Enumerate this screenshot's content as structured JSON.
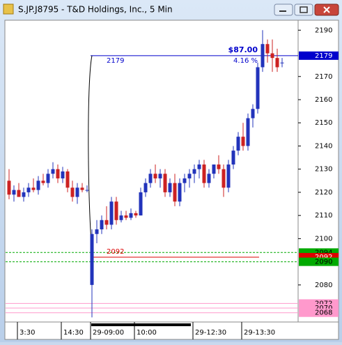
{
  "chart_data": {
    "type": "candlestick",
    "title": "S.JP.J8795 - T&D Holdings, Inc., 5 Min",
    "categories": [
      null,
      null,
      "3:30",
      null,
      null,
      null,
      null,
      null,
      null,
      null,
      null,
      "14:30",
      null,
      null,
      null,
      null,
      null,
      "29-09:00",
      null,
      null,
      null,
      null,
      null,
      null,
      null,
      null,
      "10:00",
      null,
      null,
      null,
      null,
      null,
      null,
      null,
      null,
      null,
      null,
      null,
      "29-12:30",
      null,
      null,
      null,
      null,
      null,
      null,
      null,
      null,
      null,
      "29-13:30",
      null,
      null,
      null,
      null,
      null,
      null,
      null,
      null
    ],
    "open": [
      2125,
      2119,
      2121,
      2118,
      2120,
      2122,
      2121,
      2125,
      2124,
      2128,
      2130,
      2126,
      2129,
      2122,
      2118,
      2122,
      2121,
      2080,
      2102,
      2104,
      2108,
      2106,
      2116,
      2108,
      2110,
      2109,
      2111,
      2110,
      2120,
      2124,
      2128,
      2126,
      2128,
      2120,
      2124,
      2116,
      2124,
      2126,
      2128,
      2130,
      2132,
      2124,
      2128,
      2132,
      2130,
      2122,
      2132,
      2138,
      2144,
      2140,
      2152,
      2156,
      2174,
      2184,
      2180,
      2178,
      2176
    ],
    "high": [
      2130,
      2123,
      2124,
      2122,
      2124,
      2126,
      2127,
      2128,
      2130,
      2133,
      2132,
      2131,
      2130,
      2125,
      2124,
      2124,
      2123,
      2104,
      2108,
      2110,
      2114,
      2118,
      2118,
      2112,
      2112,
      2113,
      2112,
      2122,
      2126,
      2130,
      2132,
      2130,
      2130,
      2126,
      2128,
      2126,
      2128,
      2130,
      2132,
      2134,
      2134,
      2130,
      2132,
      2136,
      2132,
      2134,
      2140,
      2146,
      2150,
      2154,
      2158,
      2176,
      2190,
      2186,
      2186,
      2182,
      2178
    ],
    "low": [
      2117,
      2116,
      2118,
      2116,
      2118,
      2120,
      2119,
      2123,
      2122,
      2126,
      2124,
      2124,
      2120,
      2116,
      2115,
      2120,
      2120,
      2066,
      2098,
      2102,
      2104,
      2104,
      2106,
      2107,
      2108,
      2108,
      2109,
      2110,
      2118,
      2122,
      2124,
      2122,
      2118,
      2118,
      2114,
      2114,
      2120,
      2122,
      2124,
      2126,
      2122,
      2122,
      2126,
      2128,
      2118,
      2120,
      2130,
      2136,
      2138,
      2138,
      2148,
      2154,
      2172,
      2176,
      2172,
      2172,
      2174
    ],
    "close": [
      2119,
      2121,
      2118,
      2120,
      2122,
      2121,
      2125,
      2124,
      2128,
      2130,
      2126,
      2129,
      2122,
      2118,
      2122,
      2121,
      2121,
      2102,
      2104,
      2108,
      2106,
      2116,
      2108,
      2110,
      2109,
      2111,
      2110,
      2120,
      2124,
      2128,
      2126,
      2128,
      2120,
      2124,
      2116,
      2124,
      2126,
      2128,
      2130,
      2132,
      2124,
      2128,
      2132,
      2130,
      2122,
      2132,
      2138,
      2144,
      2140,
      2152,
      2156,
      2174,
      2184,
      2180,
      2178,
      2174,
      2176
    ],
    "up_color": "#2233bb",
    "down_color": "#cc2222",
    "ylim": [
      2064,
      2194
    ],
    "yticks": [
      2190,
      2170,
      2160,
      2150,
      2140,
      2130,
      2120,
      2110,
      2100,
      2080
    ],
    "levels": [
      {
        "value": 2179,
        "color": "#0000cc",
        "box_text": "#ffffff"
      },
      {
        "value": 2094,
        "color": "#00aa00",
        "box_text": "#000000"
      },
      {
        "value": 2092,
        "color": "#dd0000",
        "box_text": "#ffffff"
      },
      {
        "value": 2090,
        "color": "#00aa00",
        "box_text": "#000000"
      },
      {
        "value": 2072,
        "color": "#ff99cc",
        "box_text": "#000000"
      },
      {
        "value": 2070,
        "color": "#ff99cc",
        "box_text": "#000000"
      },
      {
        "value": 2068,
        "color": "#ff99cc",
        "box_text": "#000000"
      }
    ],
    "change_amount": "$87.00",
    "change_percent": "4.16 %"
  }
}
